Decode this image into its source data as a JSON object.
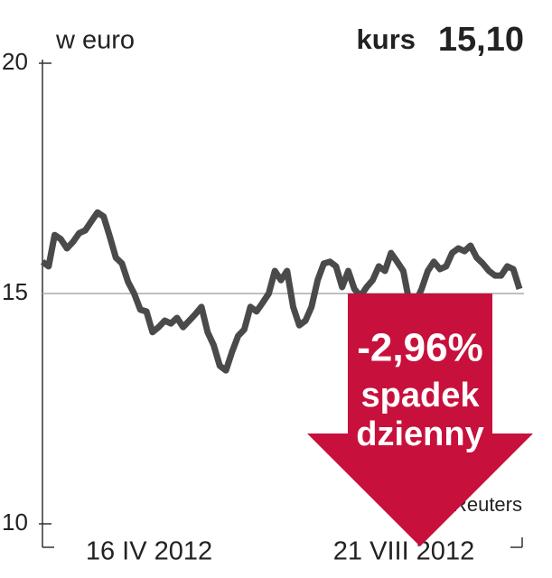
{
  "chart_data": {
    "type": "line",
    "unit_label": "w euro",
    "price_label": "kurs",
    "price_value": "15,10",
    "x_range_labels": [
      "16 IV 2012",
      "21 VIII 2012"
    ],
    "values": [
      15.69,
      15.59,
      16.27,
      16.18,
      15.98,
      16.12,
      16.31,
      16.37,
      16.57,
      16.76,
      16.67,
      16.24,
      15.78,
      15.65,
      15.25,
      15.0,
      14.65,
      14.61,
      14.16,
      14.27,
      14.41,
      14.35,
      14.47,
      14.27,
      14.41,
      14.55,
      14.71,
      14.16,
      13.88,
      13.43,
      13.33,
      13.73,
      14.08,
      14.22,
      14.71,
      14.61,
      14.8,
      15.0,
      15.49,
      15.29,
      15.49,
      14.71,
      14.31,
      14.41,
      14.71,
      15.29,
      15.65,
      15.69,
      15.59,
      15.14,
      15.49,
      15.1,
      14.94,
      15.14,
      15.29,
      15.59,
      15.49,
      15.88,
      15.69,
      15.49,
      14.8,
      14.8,
      15.1,
      15.49,
      15.69,
      15.53,
      15.59,
      15.88,
      15.98,
      15.92,
      16.04,
      15.78,
      15.65,
      15.49,
      15.39,
      15.39,
      15.59,
      15.53,
      15.1
    ],
    "color": "#4a4a4a",
    "ylim": [
      10,
      20
    ],
    "yticks": [
      10,
      15,
      20
    ],
    "grid": true,
    "annotation": {
      "change": "-2,96%",
      "line1": "spadek",
      "line2": "dzienny",
      "color": "#c8103c"
    },
    "source": "źródło: Reuters"
  }
}
